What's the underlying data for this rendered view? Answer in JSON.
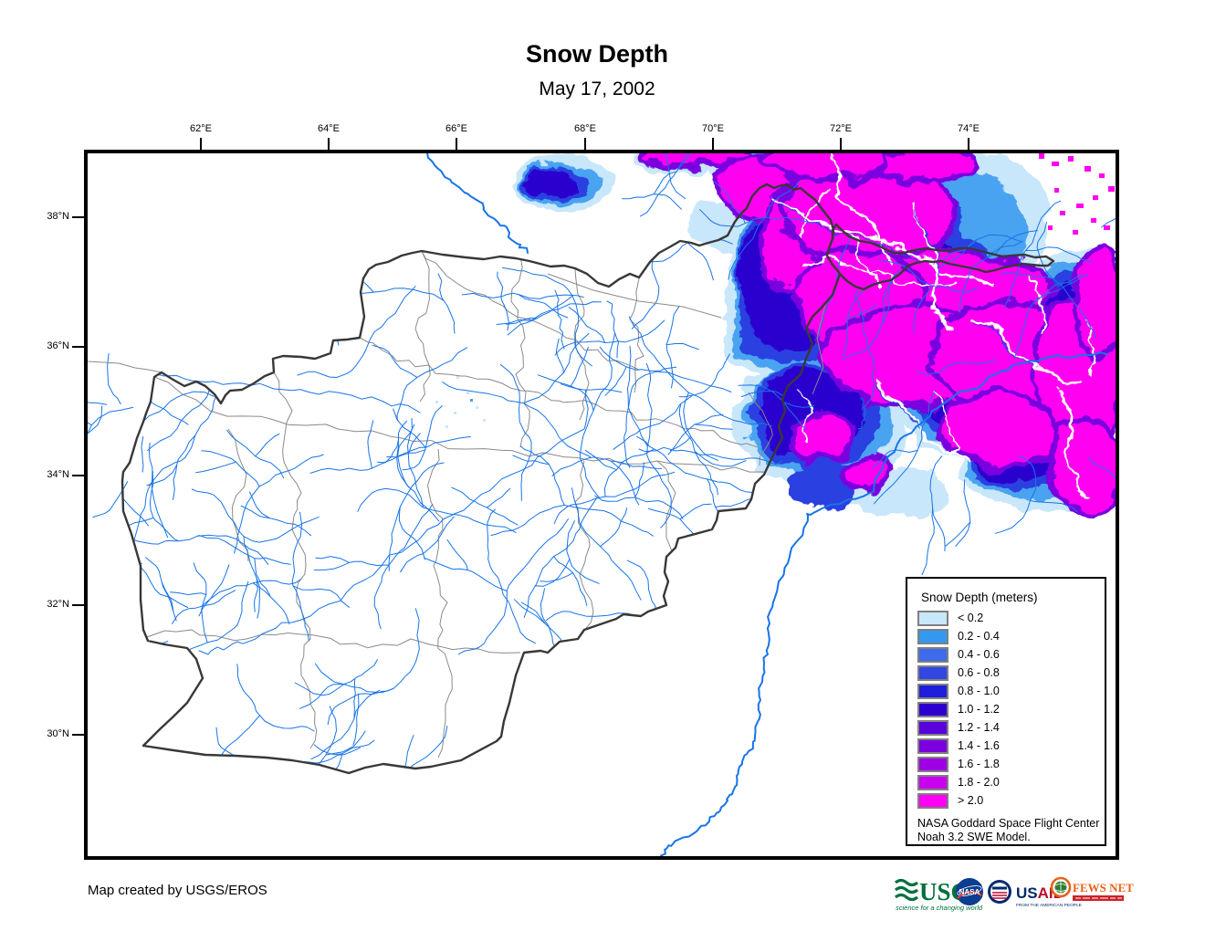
{
  "title": "Snow Depth",
  "subtitle": "May 17, 2002",
  "map": {
    "x_ticks": [
      "62°E",
      "64°E",
      "66°E",
      "68°E",
      "70°E",
      "72°E",
      "74°E"
    ],
    "y_ticks": [
      "38°N",
      "36°N",
      "34°N",
      "32°N",
      "30°N"
    ]
  },
  "legend": {
    "title": "Snow Depth (meters)",
    "items": [
      {
        "label": "< 0.2",
        "color": "#c9e7fa"
      },
      {
        "label": "0.2 - 0.4",
        "color": "#3399f0"
      },
      {
        "label": "0.4 - 0.6",
        "color": "#3d6beb"
      },
      {
        "label": "0.6 - 0.8",
        "color": "#3246e3"
      },
      {
        "label": "0.8 - 1.0",
        "color": "#1e1edc"
      },
      {
        "label": "1.0 - 1.2",
        "color": "#2e00d0"
      },
      {
        "label": "1.2 - 1.4",
        "color": "#5903dc"
      },
      {
        "label": "1.4 - 1.6",
        "color": "#7a00df"
      },
      {
        "label": "1.6 - 1.8",
        "color": "#9e00e3"
      },
      {
        "label": "1.8 - 2.0",
        "color": "#c800ef"
      },
      {
        "label": "> 2.0",
        "color": "#ff00f5"
      }
    ],
    "source_line1": "NASA Goddard Space Flight Center",
    "source_line2": "Noah 3.2 SWE Model."
  },
  "footer": {
    "credit": "Map created by USGS/EROS",
    "logos": {
      "usgs_name": "USGS",
      "usgs_tagline": "science for a changing world",
      "nasa_name": "NASA",
      "usaid_name_part1": "US",
      "usaid_name_part2": "AID",
      "usaid_tagline": "FROM THE AMERICAN PEOPLE",
      "fewsnet_name": "FEWS NET"
    }
  },
  "colors": {
    "river": "#1874e8",
    "province": "#8a8a8a",
    "country": "#383838",
    "snow1": "#c9e7fa",
    "snow2": "#49a3f1",
    "snow3": "#2b3fe0",
    "snow4": "#2a00cf",
    "snow5": "#ff00f0",
    "snowrim": "#7a00df",
    "usgs_green": "#00703c",
    "nasa_blue": "#0b3d91",
    "nasa_red": "#fc3d21",
    "usaid_blue": "#002a6c",
    "usaid_red": "#ba0c2f",
    "fews_orange": "#e8611c",
    "fews_red": "#cc2229",
    "fews_green": "#2e7d32"
  }
}
